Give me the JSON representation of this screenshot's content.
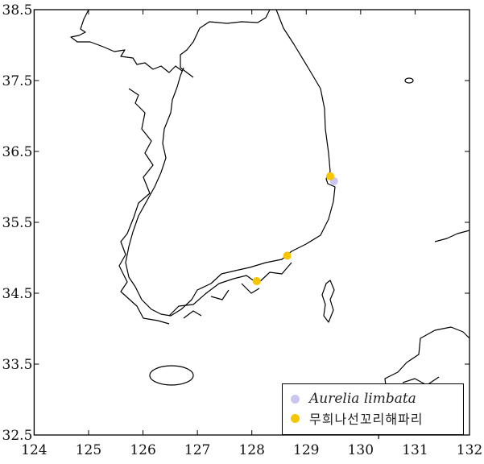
{
  "chart_data": {
    "type": "scatter",
    "xlim": [
      124,
      132
    ],
    "ylim": [
      32.5,
      38.5
    ],
    "x_ticks": [
      "124",
      "125",
      "126",
      "127",
      "128",
      "129",
      "130",
      "131",
      "132"
    ],
    "y_ticks": [
      "32.5",
      "33.5",
      "34.5",
      "35.5",
      "36.5",
      "37.5",
      "38.5"
    ],
    "grid": false,
    "legend_placement": "bottom-right",
    "series": [
      {
        "name": "Aurelia limbata",
        "color": "#c9c6f0",
        "points": [
          {
            "lon": 129.51,
            "lat": 36.08
          }
        ]
      },
      {
        "name": "무희나선꼬리해파리",
        "color": "#f7c600",
        "points": [
          {
            "lon": 129.44,
            "lat": 36.15
          },
          {
            "lon": 128.65,
            "lat": 35.03
          },
          {
            "lon": 128.09,
            "lat": 34.67
          }
        ]
      }
    ]
  },
  "legend": {
    "items": [
      {
        "label": "Aurelia limbata",
        "color": "#c9c6f0"
      },
      {
        "label": "무희나선꼬리해파리",
        "color": "#f7c600"
      }
    ]
  }
}
